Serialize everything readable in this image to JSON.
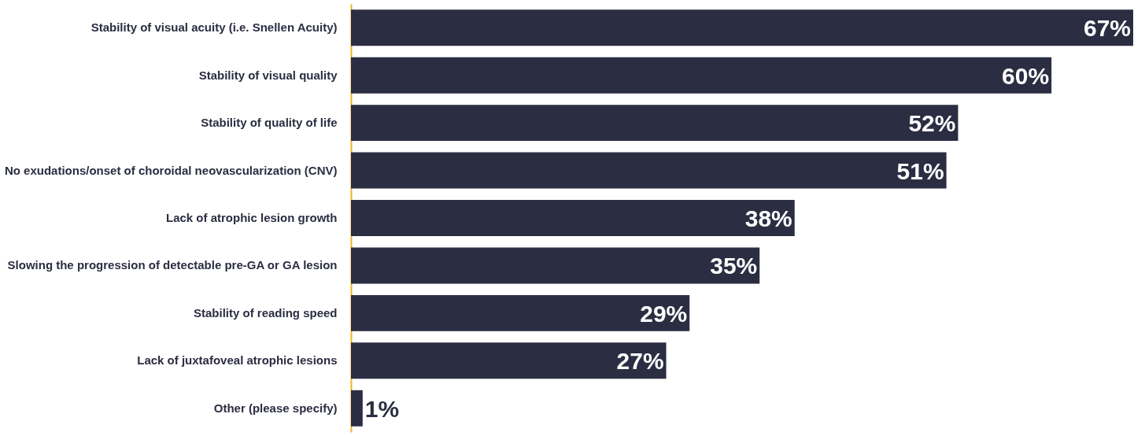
{
  "chart_data": {
    "type": "bar",
    "orientation": "horizontal",
    "categories": [
      "Stability of visual acuity (i.e. Snellen Acuity)",
      "Stability of visual quality",
      "Stability of quality of life",
      "No exudations/onset of choroidal neovascularization (CNV)",
      "Lack of atrophic lesion growth",
      "Slowing the progression of detectable pre-GA or GA lesion",
      "Stability of reading speed",
      "Lack of juxtafoveal atrophic lesions",
      "Other (please specify)"
    ],
    "values": [
      67,
      60,
      52,
      51,
      38,
      35,
      29,
      27,
      1
    ],
    "value_labels": [
      "67%",
      "60%",
      "52%",
      "51%",
      "38%",
      "35%",
      "29%",
      "27%",
      "1%"
    ],
    "color": "#2b2d42"
  }
}
